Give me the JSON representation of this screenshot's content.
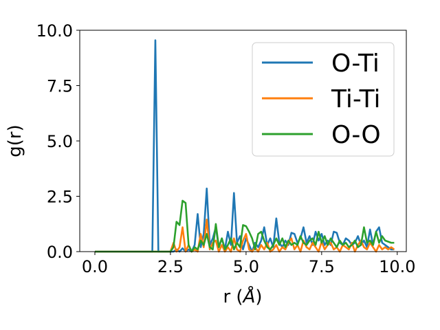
{
  "chart_data": {
    "type": "line",
    "xlabel_main": "r (",
    "xlabel_unit": "Å",
    "xlabel_close": ")",
    "ylabel": "g(r)",
    "xlim": [
      -0.5,
      10.3
    ],
    "ylim": [
      0,
      10.0
    ],
    "xticks": [
      0.0,
      2.5,
      5.0,
      7.5,
      10.0
    ],
    "xtick_labels": [
      "0.0",
      "2.5",
      "5.0",
      "7.5",
      "10.0"
    ],
    "yticks": [
      0.0,
      2.5,
      5.0,
      7.5,
      10.0
    ],
    "ytick_labels": [
      "0.0",
      "2.5",
      "5.0",
      "7.5",
      "10.0"
    ],
    "legend_position": "top-right",
    "series": [
      {
        "name": "O-Ti",
        "color": "#1f77b4",
        "x": [
          0.0,
          1.9,
          2.0,
          2.1,
          2.2,
          2.6,
          2.7,
          2.8,
          2.9,
          3.0,
          3.1,
          3.2,
          3.3,
          3.4,
          3.5,
          3.6,
          3.7,
          3.8,
          3.9,
          4.0,
          4.1,
          4.2,
          4.3,
          4.4,
          4.5,
          4.6,
          4.7,
          4.8,
          4.9,
          5.0,
          5.1,
          5.2,
          5.3,
          5.4,
          5.5,
          5.6,
          5.7,
          5.8,
          5.9,
          6.0,
          6.1,
          6.2,
          6.3,
          6.4,
          6.5,
          6.6,
          6.7,
          6.8,
          6.9,
          7.0,
          7.1,
          7.2,
          7.3,
          7.4,
          7.5,
          7.6,
          7.7,
          7.8,
          7.9,
          8.0,
          8.1,
          8.2,
          8.3,
          8.4,
          8.5,
          8.6,
          8.7,
          8.8,
          8.9,
          9.0,
          9.1,
          9.2,
          9.3,
          9.4,
          9.5,
          9.6,
          9.7,
          9.8,
          9.9
        ],
        "values": [
          0.0,
          0.0,
          9.55,
          0.0,
          0.0,
          0.0,
          0.1,
          0.0,
          0.15,
          0.0,
          0.1,
          0.0,
          0.3,
          1.7,
          0.2,
          0.8,
          2.85,
          0.3,
          0.6,
          1.1,
          0.2,
          0.6,
          0.1,
          0.9,
          0.3,
          2.65,
          0.4,
          0.7,
          0.1,
          0.6,
          0.3,
          0.0,
          0.4,
          0.2,
          0.5,
          1.1,
          0.3,
          0.6,
          0.2,
          1.5,
          0.4,
          0.2,
          0.5,
          0.3,
          0.85,
          0.8,
          0.4,
          0.6,
          1.1,
          0.4,
          0.7,
          0.3,
          0.9,
          0.5,
          0.8,
          0.3,
          0.5,
          0.3,
          0.9,
          0.85,
          0.4,
          0.3,
          0.6,
          0.5,
          0.3,
          0.4,
          0.7,
          0.3,
          0.5,
          0.2,
          1.0,
          0.3,
          0.9,
          1.1,
          0.4,
          0.3,
          0.2,
          0.1,
          0.1
        ]
      },
      {
        "name": "Ti-Ti",
        "color": "#ff7f0e",
        "x": [
          0.0,
          2.5,
          2.6,
          2.7,
          2.8,
          2.9,
          3.0,
          3.1,
          3.2,
          3.3,
          3.4,
          3.5,
          3.6,
          3.7,
          3.8,
          3.9,
          4.0,
          4.1,
          4.2,
          4.3,
          4.4,
          4.5,
          4.6,
          4.7,
          4.8,
          4.9,
          5.0,
          5.1,
          5.2,
          5.3,
          5.4,
          5.5,
          5.6,
          5.7,
          5.8,
          5.9,
          6.0,
          6.1,
          6.2,
          6.3,
          6.4,
          6.5,
          6.6,
          6.7,
          6.8,
          6.9,
          7.0,
          7.1,
          7.2,
          7.3,
          7.4,
          7.5,
          7.6,
          7.7,
          7.8,
          7.9,
          8.0,
          8.1,
          8.2,
          8.3,
          8.4,
          8.5,
          8.6,
          8.7,
          8.8,
          8.9,
          9.0,
          9.1,
          9.2,
          9.3,
          9.4,
          9.5,
          9.6,
          9.7,
          9.8,
          9.9
        ],
        "values": [
          0.0,
          0.0,
          0.4,
          0.0,
          0.2,
          1.1,
          0.0,
          0.3,
          0.0,
          0.1,
          0.0,
          0.8,
          0.2,
          1.45,
          0.1,
          0.4,
          0.5,
          0.0,
          0.3,
          0.0,
          0.2,
          0.0,
          0.6,
          0.1,
          0.0,
          0.5,
          0.8,
          0.1,
          0.0,
          0.2,
          0.0,
          0.3,
          0.1,
          0.4,
          0.0,
          0.1,
          0.3,
          0.0,
          0.2,
          0.1,
          0.4,
          0.6,
          0.1,
          0.3,
          0.0,
          0.5,
          0.2,
          0.1,
          0.4,
          0.2,
          0.0,
          0.45,
          0.1,
          0.3,
          0.4,
          0.1,
          0.2,
          0.0,
          0.3,
          0.2,
          0.1,
          0.4,
          0.0,
          0.3,
          0.5,
          0.2,
          0.1,
          0.4,
          0.2,
          0.0,
          0.3,
          0.1,
          0.2,
          0.1,
          0.2,
          0.1
        ]
      },
      {
        "name": "O-O",
        "color": "#2ca02c",
        "x": [
          0.0,
          2.4,
          2.5,
          2.6,
          2.7,
          2.8,
          2.9,
          3.0,
          3.1,
          3.2,
          3.3,
          3.4,
          3.5,
          3.6,
          3.7,
          3.8,
          3.9,
          4.0,
          4.1,
          4.2,
          4.3,
          4.4,
          4.5,
          4.6,
          4.7,
          4.8,
          4.9,
          5.0,
          5.1,
          5.2,
          5.3,
          5.4,
          5.5,
          5.6,
          5.7,
          5.8,
          5.9,
          6.0,
          6.1,
          6.2,
          6.3,
          6.4,
          6.5,
          6.6,
          6.7,
          6.8,
          6.9,
          7.0,
          7.1,
          7.2,
          7.3,
          7.4,
          7.5,
          7.6,
          7.7,
          7.8,
          7.9,
          8.0,
          8.1,
          8.2,
          8.3,
          8.4,
          8.5,
          8.6,
          8.7,
          8.8,
          8.9,
          9.0,
          9.1,
          9.2,
          9.3,
          9.4,
          9.5,
          9.6,
          9.7,
          9.8,
          9.9
        ],
        "values": [
          0.0,
          0.0,
          0.0,
          0.2,
          1.35,
          1.2,
          2.3,
          2.2,
          0.3,
          0.0,
          0.2,
          0.1,
          0.5,
          0.3,
          0.8,
          0.2,
          0.1,
          1.25,
          0.2,
          0.6,
          0.1,
          0.3,
          0.6,
          0.1,
          0.4,
          0.2,
          1.2,
          1.15,
          0.9,
          0.6,
          0.1,
          0.8,
          0.9,
          0.5,
          0.2,
          0.1,
          0.3,
          0.6,
          0.3,
          0.6,
          0.2,
          0.5,
          0.3,
          0.4,
          0.3,
          0.7,
          0.4,
          0.3,
          0.5,
          0.6,
          0.3,
          0.9,
          0.4,
          0.7,
          0.3,
          0.6,
          0.4,
          0.2,
          0.5,
          0.3,
          0.4,
          0.2,
          0.3,
          0.5,
          0.2,
          0.3,
          1.1,
          0.4,
          0.5,
          0.3,
          0.9,
          0.4,
          0.7,
          0.5,
          0.45,
          0.4,
          0.4
        ]
      }
    ]
  }
}
